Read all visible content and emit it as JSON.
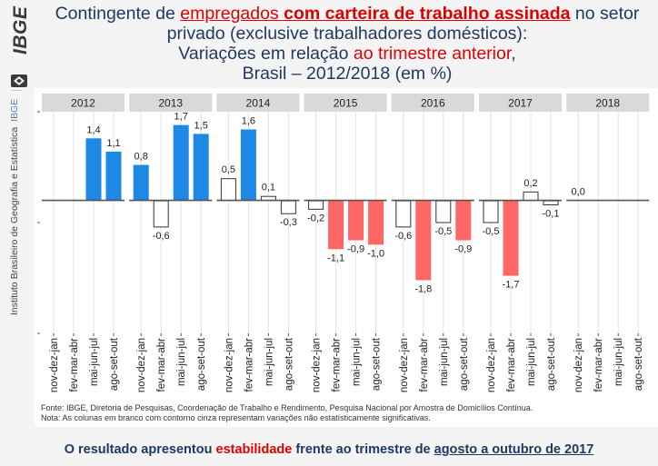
{
  "sidebar": {
    "logo_text": "IBGE",
    "institution_label": "Instituto Brasileiro de Geografia e Estatística",
    "institution_abbr": "IBGE"
  },
  "title": {
    "line1_a": "Contingente de ",
    "line1_b": "empregados ",
    "line1_c": "com carteira de trabalho assinada",
    "line1_d": " no setor",
    "line2": "privado (exclusive trabalhadores domésticos):",
    "line3_a": "Variações em relação ",
    "line3_b": "ao trimestre anterior",
    "line3_c": ",",
    "line4": "Brasil – 2012/2018 (em %)"
  },
  "chart_data": {
    "type": "bar",
    "title": "Contingente de empregados com carteira de trabalho assinada no setor privado (exclusive trabalhadores domésticos): Variações em relação ao trimestre anterior, Brasil – 2012/2018 (em %)",
    "xlabel": "",
    "ylabel": "",
    "ylim": [
      -3.0,
      2.0
    ],
    "grid": true,
    "legend": "none",
    "categories": [
      "nov-dez-jan",
      "fev-mar-abr",
      "mai-jun-jul",
      "ago-set-out"
    ],
    "colors": {
      "increase": "#1e88e5",
      "decrease": "#ff6666",
      "not_significant_fill": "#ffffff",
      "not_significant_stroke": "#333333"
    },
    "panels": [
      {
        "year": "2012",
        "values": [
          null,
          null,
          1.4,
          1.1
        ],
        "labels": [
          "",
          "",
          "1,4",
          "1,1"
        ],
        "significant": [
          null,
          null,
          true,
          true
        ]
      },
      {
        "year": "2013",
        "values": [
          0.8,
          -0.6,
          1.7,
          1.5
        ],
        "labels": [
          "0,8",
          "-0,6",
          "1,7",
          "1,5"
        ],
        "significant": [
          true,
          false,
          true,
          true
        ]
      },
      {
        "year": "2014",
        "values": [
          0.5,
          1.6,
          0.1,
          -0.3
        ],
        "labels": [
          "0,5",
          "1,6",
          "0,1",
          "-0,3"
        ],
        "significant": [
          false,
          true,
          false,
          false
        ]
      },
      {
        "year": "2015",
        "values": [
          -0.2,
          -1.1,
          -0.9,
          -1.0
        ],
        "labels": [
          "-0,2",
          "-1,1",
          "-0,9",
          "-1,0"
        ],
        "significant": [
          false,
          true,
          true,
          true
        ]
      },
      {
        "year": "2016",
        "values": [
          -0.6,
          -1.8,
          -0.5,
          -0.9
        ],
        "labels": [
          "-0,6",
          "-1,8",
          "-0,5",
          "-0,9"
        ],
        "significant": [
          false,
          true,
          false,
          true
        ]
      },
      {
        "year": "2017",
        "values": [
          -0.5,
          -1.7,
          0.2,
          -0.1
        ],
        "labels": [
          "-0,5",
          "-1,7",
          "0,2",
          "-0,1"
        ],
        "significant": [
          false,
          true,
          false,
          false
        ]
      },
      {
        "year": "2018",
        "values": [
          0.0,
          null,
          null,
          null
        ],
        "labels": [
          "0,0",
          "",
          "",
          ""
        ],
        "significant": [
          false,
          null,
          null,
          null
        ]
      }
    ]
  },
  "footnotes": {
    "source": "Fonte: IBGE, Diretoria de Pesquisas, Coordenação de Trabalho e Rendimento, Pesquisa Nacional por Amostra de Domicílios Contínua.",
    "note": "Nota: As colunas em branco com contorno cinza representam variações não estatísticamente significativas."
  },
  "conclusion": {
    "a": "O resultado apresentou ",
    "b": "estabilidade",
    "c": " frente ao trimestre de ",
    "d": "agosto a outubro de 2017"
  }
}
